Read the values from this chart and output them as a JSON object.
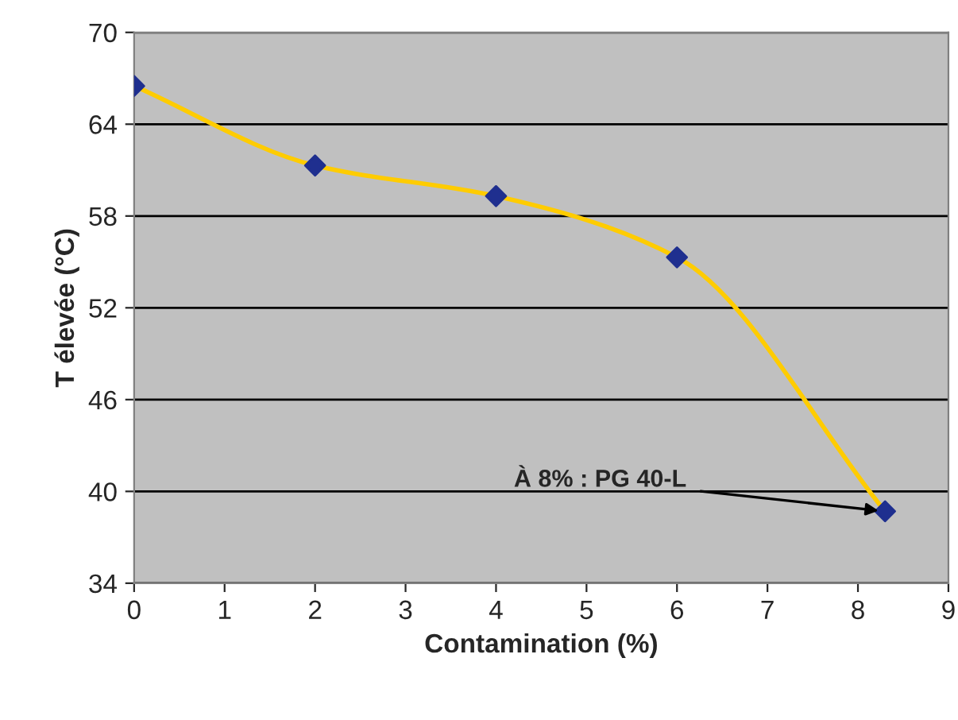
{
  "chart_data": {
    "type": "line",
    "xlabel": "Contamination (%)",
    "ylabel": "T élevée (°C)",
    "x": [
      0,
      2,
      4,
      6,
      8.3
    ],
    "series": [
      {
        "color": "#ffcc00",
        "values": [
          66.5,
          61.3,
          59.3,
          55.3,
          38.7
        ],
        "marker": "none"
      },
      {
        "type": "scatter",
        "color": "#1f2f8f",
        "values": [
          66.5,
          61.3,
          59.3,
          55.3,
          38.7
        ],
        "marker": "diamond"
      }
    ],
    "xlim": [
      0,
      9
    ],
    "xticks": [
      0,
      1,
      2,
      3,
      4,
      5,
      6,
      7,
      8,
      9
    ],
    "ylim": [
      34,
      70
    ],
    "yticks": [
      34,
      40,
      46,
      52,
      58,
      64,
      70
    ],
    "grid": "y",
    "annotations": [
      {
        "text": "À 8% : PG 40-L",
        "x": 8.3,
        "y": 38.7
      }
    ]
  }
}
